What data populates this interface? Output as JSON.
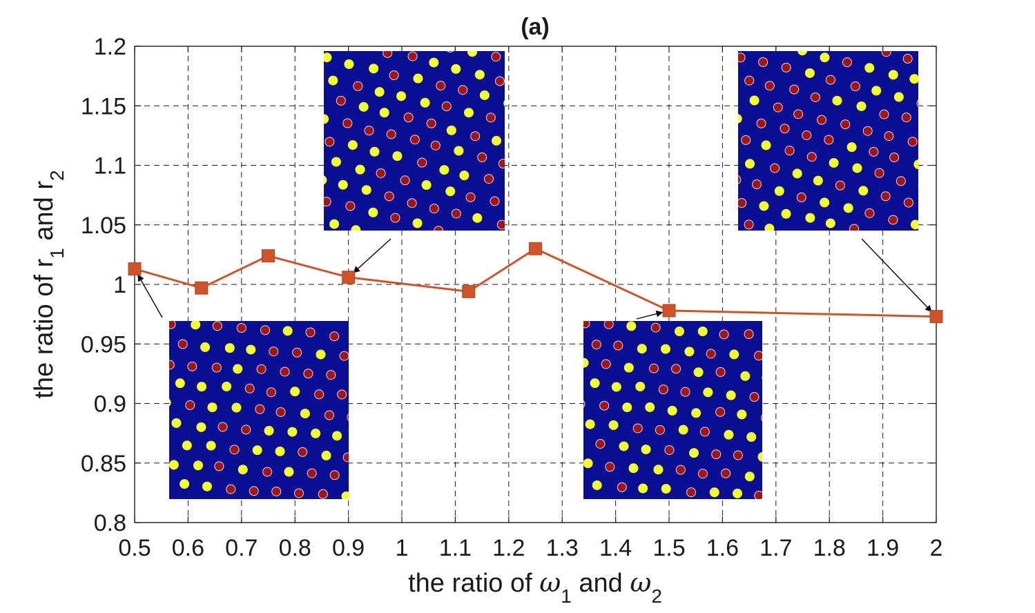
{
  "chart_data": {
    "type": "line",
    "title": "(a)",
    "xlabel": {
      "prefix": "the ratio of ",
      "sym1": "ω",
      "sub1": "1",
      "mid": " and ",
      "sym2": "ω",
      "sub2": "2"
    },
    "ylabel": {
      "prefix": "the ratio of r",
      "sub1": "1",
      "mid": " and r",
      "sub2": "2"
    },
    "xlim": [
      0.5,
      2
    ],
    "ylim": [
      0.8,
      1.2
    ],
    "xticks": [
      "0.5",
      "0.6",
      "0.7",
      "0.8",
      "0.9",
      "1",
      "1.1",
      "1.2",
      "1.3",
      "1.4",
      "1.5",
      "1.6",
      "1.7",
      "1.8",
      "1.9",
      "2"
    ],
    "yticks": [
      "0.8",
      "0.85",
      "0.9",
      "0.95",
      "1",
      "1.05",
      "1.1",
      "1.15",
      "1.2"
    ],
    "grid": true,
    "series": [
      {
        "color": "#cf5329",
        "marker": "square",
        "x": [
          0.5,
          0.625,
          0.75,
          0.9,
          1.125,
          1.25,
          1.5,
          2.0
        ],
        "y": [
          1.013,
          0.997,
          1.024,
          1.006,
          0.994,
          1.03,
          0.978,
          0.973
        ]
      }
    ],
    "insets": [
      {
        "name": "inset-pattern-x0.5",
        "points_to": {
          "x": 0.5,
          "y": 1.013
        },
        "background": "#0b0f94",
        "colors": {
          "yellow": "#f2ff2a",
          "red": "#a21515"
        }
      },
      {
        "name": "inset-pattern-x0.9",
        "points_to": {
          "x": 0.9,
          "y": 1.006
        },
        "background": "#0b0f94",
        "colors": {
          "yellow": "#f2ff2a",
          "red": "#a21515"
        }
      },
      {
        "name": "inset-pattern-x1.5",
        "points_to": {
          "x": 1.5,
          "y": 0.978
        },
        "background": "#0b0f94",
        "colors": {
          "yellow": "#f2ff2a",
          "red": "#a21515"
        }
      },
      {
        "name": "inset-pattern-x2",
        "points_to": {
          "x": 2.0,
          "y": 0.973
        },
        "background": "#0b0f94",
        "colors": {
          "yellow": "#f2ff2a",
          "red": "#a21515"
        }
      }
    ]
  }
}
